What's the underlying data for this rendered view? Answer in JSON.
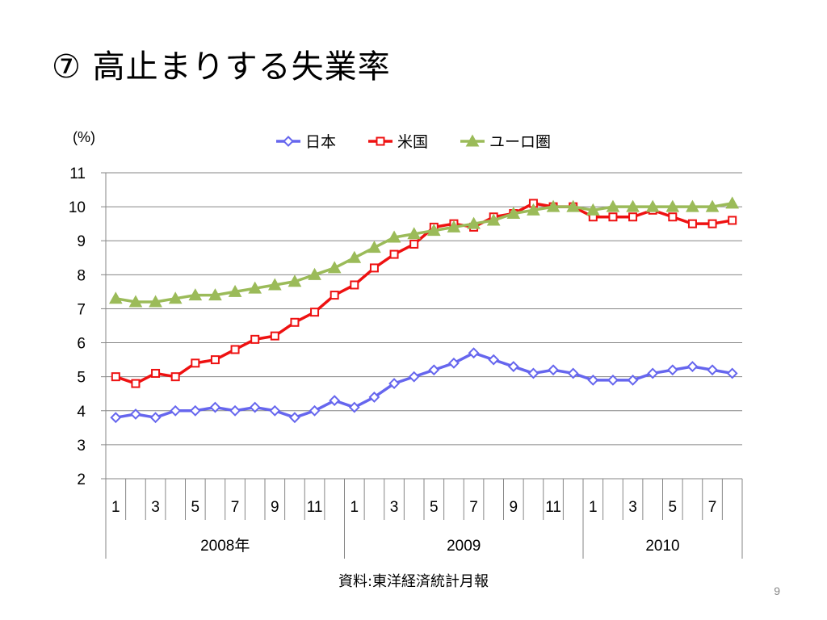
{
  "slide": {
    "title": "⑦ 高止まりする失業率",
    "source": "資料:東洋経済統計月報",
    "page_number": "9"
  },
  "chart_data": {
    "type": "line",
    "unit_label": "(%)",
    "ylim": [
      2,
      11
    ],
    "yticks": [
      2,
      3,
      4,
      5,
      6,
      7,
      8,
      9,
      10,
      11
    ],
    "grid": true,
    "legend_position": "top",
    "months": [
      1,
      2,
      3,
      4,
      5,
      6,
      7,
      8,
      9,
      10,
      11,
      12,
      1,
      2,
      3,
      4,
      5,
      6,
      7,
      8,
      9,
      10,
      11,
      12,
      1,
      2,
      3,
      4,
      5,
      6,
      7,
      8
    ],
    "month_labels": [
      "1",
      "",
      "3",
      "",
      "5",
      "",
      "7",
      "",
      "9",
      "",
      "11",
      "",
      "1",
      "",
      "3",
      "",
      "5",
      "",
      "7",
      "",
      "9",
      "",
      "11",
      "",
      "1",
      "",
      "3",
      "",
      "5",
      "",
      "7",
      ""
    ],
    "year_groups": [
      {
        "label": "2008年",
        "count": 12
      },
      {
        "label": "2009",
        "count": 12
      },
      {
        "label": "2010",
        "count": 8
      }
    ],
    "series": [
      {
        "name": "日本",
        "color": "#6666ee",
        "marker": "diamond",
        "values": [
          3.8,
          3.9,
          3.8,
          4.0,
          4.0,
          4.1,
          4.0,
          4.1,
          4.0,
          3.8,
          4.0,
          4.3,
          4.1,
          4.4,
          4.8,
          5.0,
          5.2,
          5.4,
          5.7,
          5.5,
          5.3,
          5.1,
          5.2,
          5.1,
          4.9,
          4.9,
          4.9,
          5.1,
          5.2,
          5.3,
          5.2,
          5.1
        ]
      },
      {
        "name": "米国",
        "color": "#ee1111",
        "marker": "square",
        "values": [
          5.0,
          4.8,
          5.1,
          5.0,
          5.4,
          5.5,
          5.8,
          6.1,
          6.2,
          6.6,
          6.9,
          7.4,
          7.7,
          8.2,
          8.6,
          8.9,
          9.4,
          9.5,
          9.4,
          9.7,
          9.8,
          10.1,
          10.0,
          10.0,
          9.7,
          9.7,
          9.7,
          9.9,
          9.7,
          9.5,
          9.5,
          9.6
        ]
      },
      {
        "name": "ユーロ圏",
        "color": "#9bbb59",
        "marker": "triangle",
        "values": [
          7.3,
          7.2,
          7.2,
          7.3,
          7.4,
          7.4,
          7.5,
          7.6,
          7.7,
          7.8,
          8.0,
          8.2,
          8.5,
          8.8,
          9.1,
          9.2,
          9.3,
          9.4,
          9.5,
          9.6,
          9.8,
          9.9,
          10.0,
          10.0,
          9.9,
          10.0,
          10.0,
          10.0,
          10.0,
          10.0,
          10.0,
          10.1
        ]
      }
    ]
  }
}
